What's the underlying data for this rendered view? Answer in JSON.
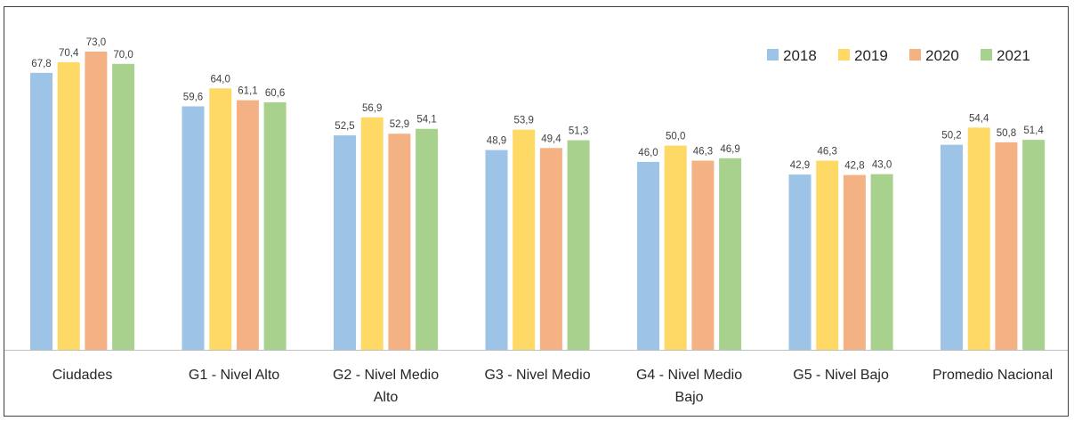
{
  "chart_data": {
    "type": "bar",
    "title": "",
    "xlabel": "",
    "ylabel": "",
    "ylim": [
      0,
      76
    ],
    "grid": false,
    "legend_position": "top-right",
    "categories": [
      [
        "Ciudades"
      ],
      [
        "G1 - Nivel Alto"
      ],
      [
        "G2 - Nivel Medio",
        "Alto"
      ],
      [
        "G3 - Nivel Medio"
      ],
      [
        "G4 - Nivel Medio",
        "Bajo"
      ],
      [
        "G5 - Nivel Bajo"
      ],
      [
        "Promedio Nacional"
      ]
    ],
    "series": [
      {
        "name": "2018",
        "color": "#9DC3E6",
        "values": [
          67.8,
          59.6,
          52.5,
          48.9,
          46.0,
          42.9,
          50.2
        ],
        "labels": [
          "67,8",
          "59,6",
          "52,5",
          "48,9",
          "46,0",
          "42,9",
          "50,2"
        ]
      },
      {
        "name": "2019",
        "color": "#FFD966",
        "values": [
          70.4,
          64.0,
          56.9,
          53.9,
          50.0,
          46.3,
          54.4
        ],
        "labels": [
          "70,4",
          "64,0",
          "56,9",
          "53,9",
          "50,0",
          "46,3",
          "54,4"
        ]
      },
      {
        "name": "2020",
        "color": "#F4B183",
        "values": [
          73.0,
          61.1,
          52.9,
          49.4,
          46.3,
          42.8,
          50.8
        ],
        "labels": [
          "73,0",
          "61,1",
          "52,9",
          "49,4",
          "46,3",
          "42,8",
          "50,8"
        ]
      },
      {
        "name": "2021",
        "color": "#A9D18E",
        "values": [
          70.0,
          60.6,
          54.1,
          51.3,
          46.9,
          43.0,
          51.4
        ],
        "labels": [
          "70,0",
          "60,6",
          "54,1",
          "51,3",
          "46,9",
          "43,0",
          "51,4"
        ]
      }
    ]
  }
}
